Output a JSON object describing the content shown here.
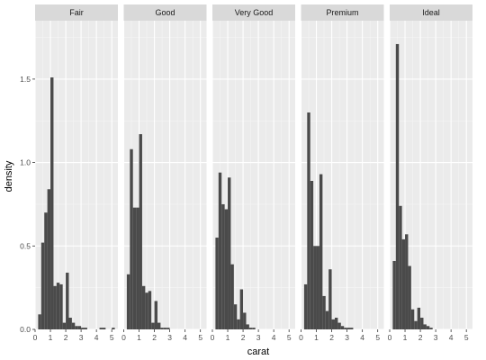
{
  "chart_data": {
    "type": "bar",
    "subtype": "faceted-histogram",
    "xlabel": "carat",
    "ylabel": "density",
    "xlim": [
      0,
      5.4
    ],
    "ylim": [
      0,
      1.85
    ],
    "x_ticks": [
      0,
      1,
      2,
      3,
      4,
      5
    ],
    "x_tick_labels": [
      "0",
      "1",
      "2",
      "3",
      "4",
      "5"
    ],
    "y_ticks": [
      0,
      0.5,
      1,
      1.5
    ],
    "y_tick_labels": [
      "0.0",
      "0.5",
      "1.0",
      "1.5"
    ],
    "grid": true,
    "bin_width": 0.2,
    "bin_start": 0.2,
    "colors": {
      "bar": "#4a4a4a",
      "panel": "#ebebeb",
      "strip": "#d9d9d9",
      "grid_major": "#ffffff",
      "grid_minor": "#f5f5f5"
    },
    "facets": [
      {
        "label": "Fair",
        "values": [
          0.09,
          0.52,
          0.7,
          0.84,
          1.51,
          0.26,
          0.28,
          0.27,
          0.04,
          0.34,
          0.07,
          0.04,
          0.02,
          0.02,
          0.01,
          0.01,
          0,
          0,
          0,
          0,
          0.01,
          0.01,
          0,
          0,
          0.01
        ]
      },
      {
        "label": "Good",
        "values": [
          0.33,
          1.08,
          0.73,
          0.73,
          1.17,
          0.26,
          0.22,
          0.23,
          0.04,
          0.17,
          0.04,
          0.01,
          0.01,
          0.01
        ]
      },
      {
        "label": "Very Good",
        "values": [
          0.55,
          0.94,
          0.75,
          0.72,
          0.91,
          0.39,
          0.15,
          0.06,
          0.24,
          0.1,
          0.03,
          0.01,
          0.01
        ]
      },
      {
        "label": "Premium",
        "values": [
          0.27,
          1.3,
          0.89,
          0.5,
          0.5,
          0.93,
          0.2,
          0.11,
          0.36,
          0.06,
          0.07,
          0.04,
          0.02,
          0.01,
          0.01,
          0.01
        ]
      },
      {
        "label": "Ideal",
        "values": [
          0.41,
          1.71,
          0.74,
          0.54,
          0.57,
          0.38,
          0.12,
          0.05,
          0.13,
          0.07,
          0.03,
          0.02,
          0.01
        ]
      }
    ]
  }
}
